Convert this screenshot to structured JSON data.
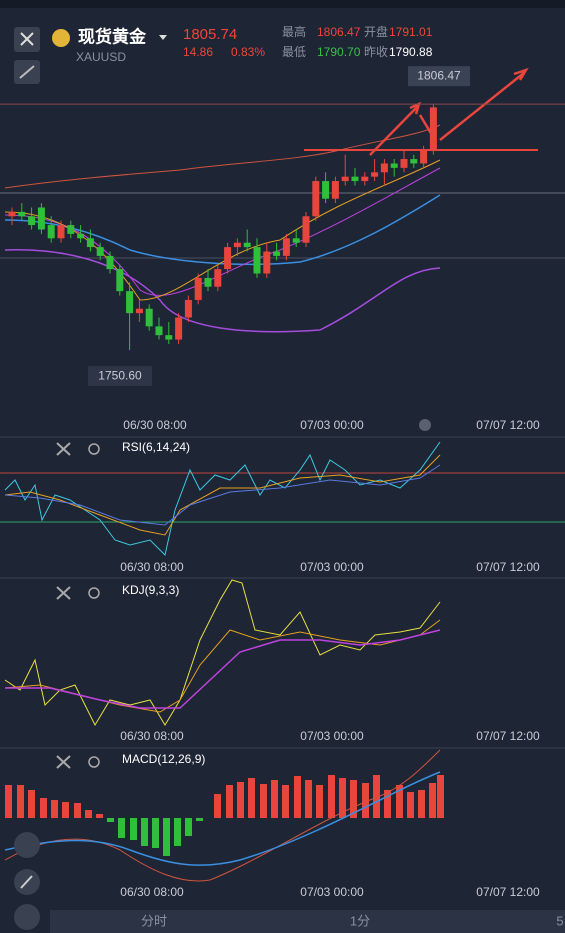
{
  "header": {
    "name": "现货黄金",
    "symbol": "XAUUSD",
    "price": "1805.74",
    "change": "14.86",
    "change_pct": "0.83%",
    "stats": [
      {
        "label": "最高",
        "value": "1806.47"
      },
      {
        "label": "开盘",
        "value": "1791.01"
      },
      {
        "label": "最低",
        "value": "1790.70"
      },
      {
        "label": "昨收",
        "value": "1790.88"
      }
    ]
  },
  "chart_data": {
    "type": "candlestick",
    "ylim": [
      1737,
      1816.5
    ],
    "candles": [
      [
        1781,
        1783,
        1779,
        1782
      ],
      [
        1782,
        1784,
        1780,
        1781
      ],
      [
        1781,
        1783,
        1778,
        1779
      ],
      [
        1783,
        1784,
        1777,
        1778
      ],
      [
        1779,
        1781,
        1775,
        1776
      ],
      [
        1776,
        1780,
        1775,
        1779
      ],
      [
        1779,
        1780,
        1776,
        1777
      ],
      [
        1777,
        1779,
        1775,
        1776
      ],
      [
        1776,
        1778,
        1773,
        1774
      ],
      [
        1774,
        1775,
        1771,
        1772
      ],
      [
        1772,
        1773,
        1768,
        1769
      ],
      [
        1769,
        1770,
        1763,
        1764
      ],
      [
        1764,
        1766,
        1750.6,
        1759
      ],
      [
        1759,
        1762,
        1757,
        1760
      ],
      [
        1760,
        1761,
        1755,
        1756
      ],
      [
        1756,
        1758,
        1753,
        1754
      ],
      [
        1754,
        1757,
        1752,
        1753
      ],
      [
        1753,
        1759,
        1752,
        1758
      ],
      [
        1758,
        1763,
        1757,
        1762
      ],
      [
        1762,
        1768,
        1761,
        1767
      ],
      [
        1767,
        1769,
        1764,
        1765
      ],
      [
        1765,
        1770,
        1764,
        1769
      ],
      [
        1769,
        1775,
        1768,
        1774
      ],
      [
        1774,
        1776,
        1772,
        1775
      ],
      [
        1775,
        1778,
        1773,
        1774
      ],
      [
        1774,
        1776,
        1767,
        1768
      ],
      [
        1768,
        1775,
        1767,
        1773
      ],
      [
        1773,
        1775,
        1771,
        1772
      ],
      [
        1772,
        1777,
        1771,
        1776
      ],
      [
        1776,
        1778,
        1774,
        1775
      ],
      [
        1775,
        1782,
        1774,
        1781
      ],
      [
        1781,
        1790,
        1780,
        1789
      ],
      [
        1789,
        1791,
        1784,
        1785
      ],
      [
        1785,
        1790,
        1784,
        1789
      ],
      [
        1789,
        1795,
        1788,
        1790
      ],
      [
        1790,
        1792,
        1788,
        1789
      ],
      [
        1789,
        1791,
        1788,
        1790
      ],
      [
        1790,
        1794,
        1789,
        1791
      ],
      [
        1791,
        1794,
        1788,
        1793
      ],
      [
        1793,
        1794,
        1790,
        1792
      ],
      [
        1792,
        1796,
        1791,
        1794
      ],
      [
        1794,
        1795,
        1792,
        1793
      ],
      [
        1793,
        1797,
        1792,
        1796
      ],
      [
        1796,
        1806.47,
        1795,
        1805.74
      ]
    ],
    "up_color": "#e8453c",
    "down_color": "#2fbf3a",
    "high_label": {
      "value": 1806.47,
      "label": "1806.47"
    },
    "low_label": {
      "value": 1750.6,
      "label": "1750.60"
    },
    "x_labels": [
      "06/30 08:00",
      "07/03 00:00",
      "07/07 12:00"
    ]
  },
  "indicators": [
    "RSI(6,14,24)",
    "KDJ(9,3,3)",
    "MACD(12,26,9)"
  ],
  "bottom_bar": [
    "分时",
    "1分",
    "5"
  ]
}
